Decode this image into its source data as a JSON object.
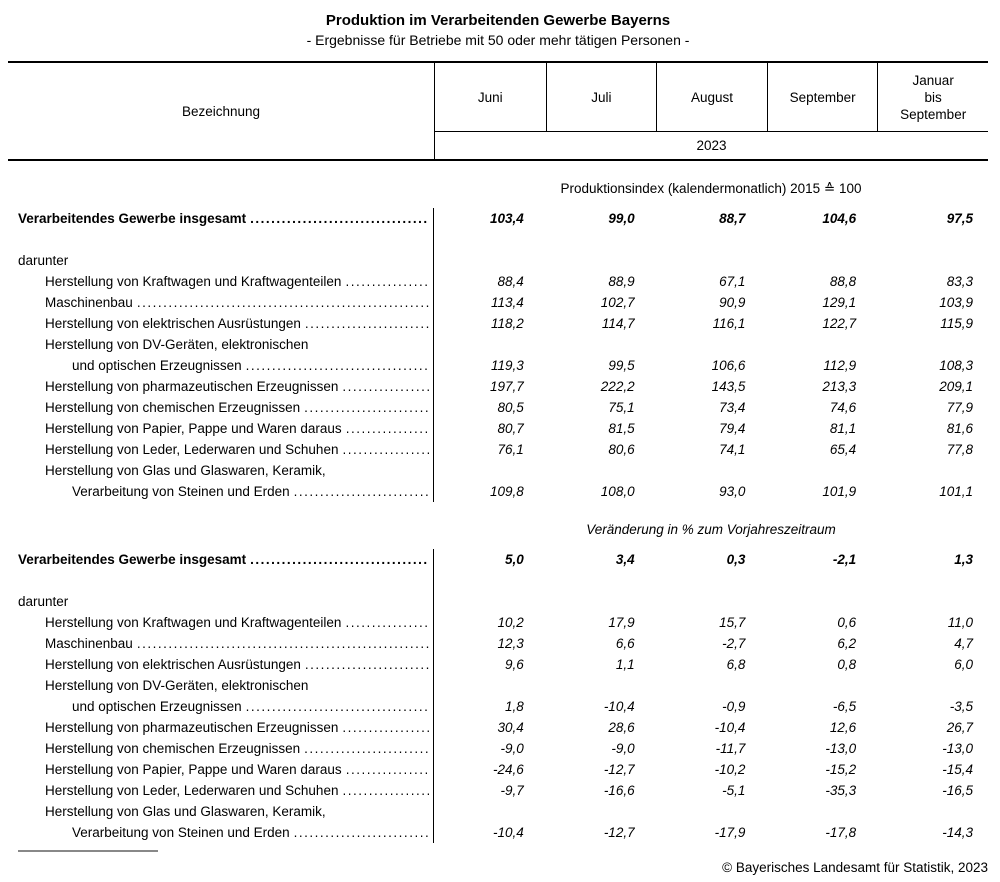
{
  "title": "Produktion im Verarbeitenden Gewerbe Bayerns",
  "subtitle": "- Ergebnisse für Betriebe mit 50 oder mehr tätigen Personen -",
  "table": {
    "label_column_header": "Bezeichnung",
    "columns": [
      "Juni",
      "Juli",
      "August",
      "September",
      "Januar\nbis\nSeptember"
    ],
    "year": "2023",
    "sections": [
      {
        "heading": "Produktionsindex (kalendermonatlich) 2015 ≙ 100",
        "italic": false,
        "rows": [
          {
            "label": "Verarbeitendes Gewerbe insgesamt",
            "indent": 0,
            "bold": true,
            "leader": true,
            "gap": false,
            "values": [
              "103,4",
              "99,0",
              "88,7",
              "104,6",
              "97,5"
            ]
          },
          {
            "label": "darunter",
            "indent": 0,
            "bold": false,
            "leader": false,
            "gap": true,
            "values": null
          },
          {
            "label": "Herstellung von Kraftwagen und Kraftwagenteilen",
            "indent": 1,
            "bold": false,
            "leader": true,
            "gap": false,
            "values": [
              "88,4",
              "88,9",
              "67,1",
              "88,8",
              "83,3"
            ]
          },
          {
            "label": "Maschinenbau",
            "indent": 1,
            "bold": false,
            "leader": true,
            "gap": false,
            "values": [
              "113,4",
              "102,7",
              "90,9",
              "129,1",
              "103,9"
            ]
          },
          {
            "label": "Herstellung von elektrischen Ausrüstungen",
            "indent": 1,
            "bold": false,
            "leader": true,
            "gap": false,
            "values": [
              "118,2",
              "114,7",
              "116,1",
              "122,7",
              "115,9"
            ]
          },
          {
            "label": "Herstellung von DV-Geräten, elektronischen",
            "indent": 1,
            "bold": false,
            "leader": false,
            "gap": false,
            "values": null
          },
          {
            "label": "und optischen Erzeugnissen",
            "indent": 2,
            "bold": false,
            "leader": true,
            "gap": false,
            "values": [
              "119,3",
              "99,5",
              "106,6",
              "112,9",
              "108,3"
            ]
          },
          {
            "label": "Herstellung von pharmazeutischen Erzeugnissen",
            "indent": 1,
            "bold": false,
            "leader": true,
            "gap": false,
            "values": [
              "197,7",
              "222,2",
              "143,5",
              "213,3",
              "209,1"
            ]
          },
          {
            "label": "Herstellung von chemischen Erzeugnissen",
            "indent": 1,
            "bold": false,
            "leader": true,
            "gap": false,
            "values": [
              "80,5",
              "75,1",
              "73,4",
              "74,6",
              "77,9"
            ]
          },
          {
            "label": "Herstellung von Papier, Pappe und Waren daraus",
            "indent": 1,
            "bold": false,
            "leader": true,
            "gap": false,
            "values": [
              "80,7",
              "81,5",
              "79,4",
              "81,1",
              "81,6"
            ]
          },
          {
            "label": "Herstellung von Leder, Lederwaren und Schuhen",
            "indent": 1,
            "bold": false,
            "leader": true,
            "gap": false,
            "values": [
              "76,1",
              "80,6",
              "74,1",
              "65,4",
              "77,8"
            ]
          },
          {
            "label": "Herstellung von Glas und Glaswaren, Keramik,",
            "indent": 1,
            "bold": false,
            "leader": false,
            "gap": false,
            "values": null
          },
          {
            "label": "Verarbeitung von Steinen und Erden",
            "indent": 2,
            "bold": false,
            "leader": true,
            "gap": false,
            "values": [
              "109,8",
              "108,0",
              "93,0",
              "101,9",
              "101,1"
            ]
          }
        ]
      },
      {
        "heading": "Veränderung in % zum Vorjahreszeitraum",
        "italic": true,
        "rows": [
          {
            "label": "Verarbeitendes Gewerbe insgesamt",
            "indent": 0,
            "bold": true,
            "leader": true,
            "gap": false,
            "values": [
              "5,0",
              "3,4",
              "0,3",
              "-2,1",
              "1,3"
            ]
          },
          {
            "label": "darunter",
            "indent": 0,
            "bold": false,
            "leader": false,
            "gap": true,
            "values": null
          },
          {
            "label": "Herstellung von Kraftwagen und Kraftwagenteilen",
            "indent": 1,
            "bold": false,
            "leader": true,
            "gap": false,
            "values": [
              "10,2",
              "17,9",
              "15,7",
              "0,6",
              "11,0"
            ]
          },
          {
            "label": "Maschinenbau",
            "indent": 1,
            "bold": false,
            "leader": true,
            "gap": false,
            "values": [
              "12,3",
              "6,6",
              "-2,7",
              "6,2",
              "4,7"
            ]
          },
          {
            "label": "Herstellung von elektrischen Ausrüstungen",
            "indent": 1,
            "bold": false,
            "leader": true,
            "gap": false,
            "values": [
              "9,6",
              "1,1",
              "6,8",
              "0,8",
              "6,0"
            ]
          },
          {
            "label": "Herstellung von DV-Geräten, elektronischen",
            "indent": 1,
            "bold": false,
            "leader": false,
            "gap": false,
            "values": null
          },
          {
            "label": "und optischen Erzeugnissen",
            "indent": 2,
            "bold": false,
            "leader": true,
            "gap": false,
            "values": [
              "1,8",
              "-10,4",
              "-0,9",
              "-6,5",
              "-3,5"
            ]
          },
          {
            "label": "Herstellung von pharmazeutischen Erzeugnissen",
            "indent": 1,
            "bold": false,
            "leader": true,
            "gap": false,
            "values": [
              "30,4",
              "28,6",
              "-10,4",
              "12,6",
              "26,7"
            ]
          },
          {
            "label": "Herstellung von chemischen Erzeugnissen",
            "indent": 1,
            "bold": false,
            "leader": true,
            "gap": false,
            "values": [
              "-9,0",
              "-9,0",
              "-11,7",
              "-13,0",
              "-13,0"
            ]
          },
          {
            "label": "Herstellung von Papier, Pappe und Waren daraus",
            "indent": 1,
            "bold": false,
            "leader": true,
            "gap": false,
            "values": [
              "-24,6",
              "-12,7",
              "-10,2",
              "-15,2",
              "-15,4"
            ]
          },
          {
            "label": "Herstellung von Leder, Lederwaren und Schuhen",
            "indent": 1,
            "bold": false,
            "leader": true,
            "gap": false,
            "values": [
              "-9,7",
              "-16,6",
              "-5,1",
              "-35,3",
              "-16,5"
            ]
          },
          {
            "label": "Herstellung von Glas und Glaswaren, Keramik,",
            "indent": 1,
            "bold": false,
            "leader": false,
            "gap": false,
            "values": null
          },
          {
            "label": "Verarbeitung von Steinen und Erden",
            "indent": 2,
            "bold": false,
            "leader": true,
            "gap": false,
            "values": [
              "-10,4",
              "-12,7",
              "-17,9",
              "-17,8",
              "-14,3"
            ]
          }
        ]
      }
    ]
  },
  "footer": {
    "copyright": "© Bayerisches Landesamt für Statistik, 2023"
  }
}
